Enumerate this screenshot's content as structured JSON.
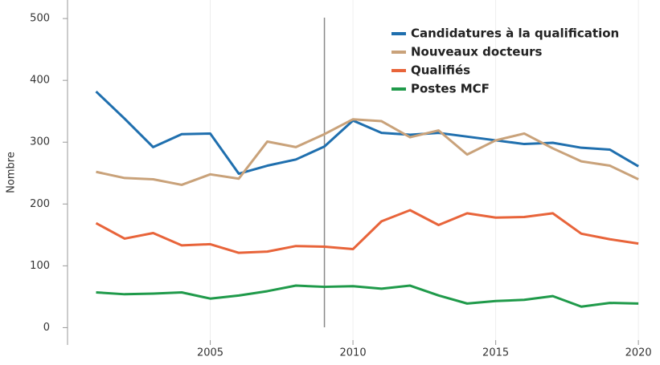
{
  "chart_data": {
    "type": "line",
    "y_label": "Nombre",
    "x": [
      2001,
      2002,
      2003,
      2004,
      2005,
      2006,
      2007,
      2008,
      2009,
      2010,
      2011,
      2012,
      2013,
      2014,
      2015,
      2016,
      2017,
      2018,
      2019,
      2020
    ],
    "series": [
      {
        "name": "Candidatures à la qualification",
        "color": "#1f6fae",
        "values": [
          382,
          338,
          292,
          313,
          314,
          249,
          262,
          272,
          293,
          335,
          315,
          312,
          315,
          309,
          303,
          297,
          299,
          291,
          288,
          261
        ]
      },
      {
        "name": "Nouveaux docteurs",
        "color": "#c9a27a",
        "values": [
          252,
          242,
          240,
          231,
          248,
          241,
          301,
          292,
          313,
          337,
          334,
          308,
          319,
          280,
          303,
          314,
          290,
          269,
          262,
          240
        ]
      },
      {
        "name": "Qualifiés",
        "color": "#e8643a",
        "values": [
          169,
          144,
          153,
          133,
          135,
          121,
          123,
          132,
          131,
          127,
          172,
          190,
          166,
          185,
          178,
          179,
          185,
          152,
          143,
          136
        ]
      },
      {
        "name": "Postes MCF",
        "color": "#1f9a4a",
        "values": [
          57,
          54,
          55,
          57,
          47,
          52,
          59,
          68,
          66,
          67,
          63,
          68,
          52,
          39,
          43,
          45,
          51,
          34,
          40,
          39
        ]
      }
    ],
    "xlim": [
      2000,
      2020.7
    ],
    "xticks": [
      2005,
      2010,
      2015,
      2020
    ],
    "ylim": [
      -28,
      530
    ],
    "yticks": [
      0,
      100,
      200,
      300,
      400,
      500
    ],
    "vline": 2009,
    "grid": true,
    "legend": "top-right"
  }
}
